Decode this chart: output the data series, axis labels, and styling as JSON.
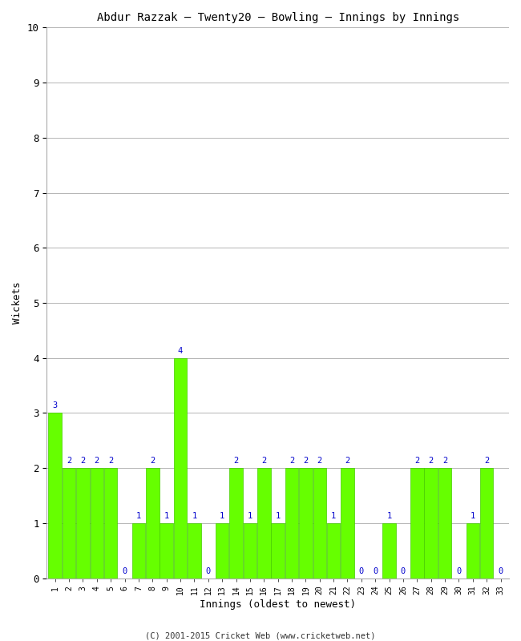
{
  "title": "Abdur Razzak – Twenty20 – Bowling – Innings by Innings",
  "xlabel": "Innings (oldest to newest)",
  "ylabel": "Wickets",
  "bar_color": "#66FF00",
  "bar_edge_color": "#44CC00",
  "label_color": "#0000CC",
  "background_color": "#ffffff",
  "grid_color": "#aaaaaa",
  "ylim": [
    0,
    10
  ],
  "yticks": [
    0,
    1,
    2,
    3,
    4,
    5,
    6,
    7,
    8,
    9,
    10
  ],
  "footnote": "(C) 2001-2015 Cricket Web (www.cricketweb.net)",
  "innings": [
    1,
    2,
    3,
    4,
    5,
    6,
    7,
    8,
    9,
    10,
    11,
    12,
    13,
    14,
    15,
    16,
    17,
    18,
    19,
    20,
    21,
    22,
    23,
    24,
    25,
    26,
    27,
    28,
    29,
    30,
    31,
    32,
    33
  ],
  "wickets": [
    3,
    2,
    2,
    2,
    2,
    0,
    1,
    2,
    1,
    4,
    1,
    0,
    1,
    2,
    1,
    2,
    1,
    2,
    2,
    2,
    1,
    2,
    0,
    0,
    1,
    0,
    2,
    2,
    2,
    0,
    1,
    2,
    0
  ]
}
